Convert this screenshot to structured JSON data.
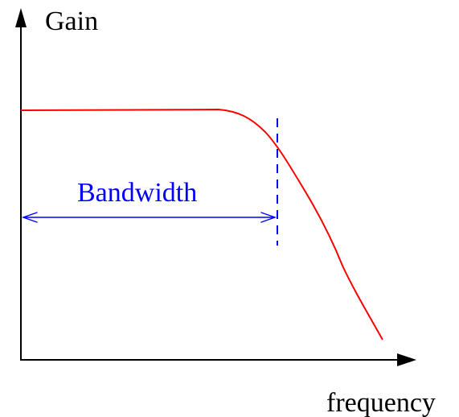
{
  "axes": {
    "y_label": "Gain",
    "x_label": "frequency"
  },
  "annotation": {
    "bandwidth_label": "Bandwidth"
  },
  "colors": {
    "curve": "#ff0000",
    "annotation": "#0000ff",
    "axes": "#000000"
  }
}
